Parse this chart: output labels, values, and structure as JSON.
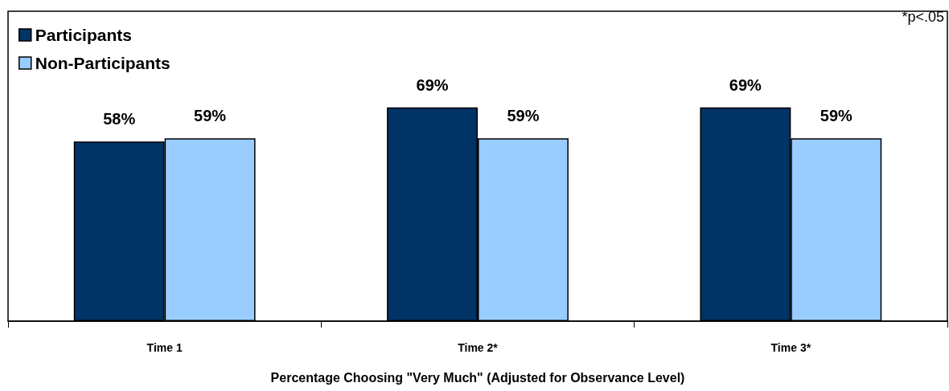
{
  "chart_data": {
    "type": "bar",
    "xlabel": "Percentage Choosing \"Very Much\" (Adjusted for Observance Level)",
    "categories": [
      "Time 1",
      "Time 2*",
      "Time 3*"
    ],
    "series": [
      {
        "name": "Participants",
        "color": "#003366",
        "values": [
          58,
          69,
          69
        ],
        "value_labels": [
          "58%",
          "69%",
          "69%"
        ]
      },
      {
        "name": "Non-Participants",
        "color": "#99ccff",
        "values": [
          59,
          59,
          59
        ],
        "value_labels": [
          "59%",
          "59%",
          "59%"
        ]
      }
    ],
    "tick_labels": "x",
    "grid": false,
    "legend": "top left",
    "annotations": [
      "*p<.05"
    ]
  }
}
